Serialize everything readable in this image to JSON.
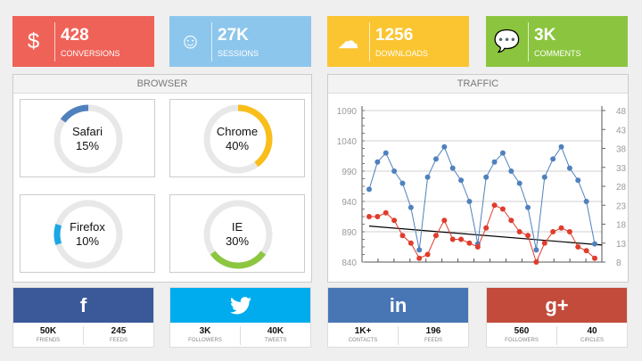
{
  "stats": [
    {
      "icon": "dollar-icon",
      "glyph": "$",
      "value": "428",
      "label": "CONVERSIONS",
      "color": "#EF6258"
    },
    {
      "icon": "smiley-icon",
      "glyph": "☺",
      "value": "27K",
      "label": "SESSIONS",
      "color": "#8DC6EC"
    },
    {
      "icon": "cloud-download-icon",
      "glyph": "☁",
      "value": "1256",
      "label": "DOWNLOADS",
      "color": "#FBC531"
    },
    {
      "icon": "chat-bubbles-icon",
      "glyph": "💬",
      "value": "3K",
      "label": "COMMENTS",
      "color": "#8BC53F"
    }
  ],
  "browser": {
    "title": "BROWSER",
    "items": [
      {
        "name": "Safari",
        "pct": "15%",
        "value": 15,
        "color": "#4F81BD"
      },
      {
        "name": "Chrome",
        "pct": "40%",
        "value": 40,
        "color": "#F9BE1A"
      },
      {
        "name": "Firefox",
        "pct": "10%",
        "value": 10,
        "color": "#1BA7E6"
      },
      {
        "name": "IE",
        "pct": "30%",
        "value": 30,
        "color": "#8DC63F"
      }
    ]
  },
  "traffic": {
    "title": "TRAFFIC"
  },
  "chart_data": {
    "type": "line",
    "left_axis": {
      "ylim": [
        840,
        1090
      ],
      "ticks": [
        "840",
        "890",
        "940",
        "990",
        "1040",
        "1090"
      ]
    },
    "right_axis": {
      "ylim": [
        8,
        48
      ],
      "ticks": [
        "8",
        "13",
        "18",
        "23",
        "28",
        "33",
        "38",
        "43",
        "48"
      ]
    },
    "grid": true,
    "series": [
      {
        "axis": "left",
        "color": "#4F81BD",
        "values": [
          960,
          1005,
          1020,
          990,
          970,
          930,
          860,
          980,
          1010,
          1030,
          995,
          975,
          940,
          870,
          980,
          1005,
          1020,
          990,
          970,
          930,
          860,
          980,
          1010,
          1030,
          995,
          975,
          940,
          870
        ]
      },
      {
        "axis": "right",
        "color": "#E03C2D",
        "values": [
          20,
          20,
          21,
          19,
          15,
          13,
          9,
          10,
          15,
          19,
          14,
          14,
          13,
          12,
          17,
          23,
          22,
          19,
          16,
          15,
          8,
          13,
          16,
          17,
          16,
          12,
          11,
          9
        ]
      }
    ],
    "trendline": {
      "axis": "right",
      "color": "#000000",
      "from": 17.5,
      "to": 12.5
    }
  },
  "social": [
    {
      "network": "facebook",
      "glyph": "f",
      "color": "#3B5998",
      "stats": [
        {
          "value": "50K",
          "label": "FRIENDS"
        },
        {
          "value": "245",
          "label": "FEEDS"
        }
      ]
    },
    {
      "network": "twitter",
      "glyph": "",
      "color": "#00ACED",
      "stats": [
        {
          "value": "3K",
          "label": "FOLLOWERS"
        },
        {
          "value": "40K",
          "label": "TWEETS"
        }
      ]
    },
    {
      "network": "linkedin",
      "glyph": "in",
      "color": "#4875B4",
      "stats": [
        {
          "value": "1K+",
          "label": "CONTACTS"
        },
        {
          "value": "196",
          "label": "FEEDS"
        }
      ]
    },
    {
      "network": "google-plus",
      "glyph": "g+",
      "color": "#C24B3B",
      "stats": [
        {
          "value": "560",
          "label": "FOLLOWERS"
        },
        {
          "value": "40",
          "label": "CIRCLES"
        }
      ]
    }
  ]
}
